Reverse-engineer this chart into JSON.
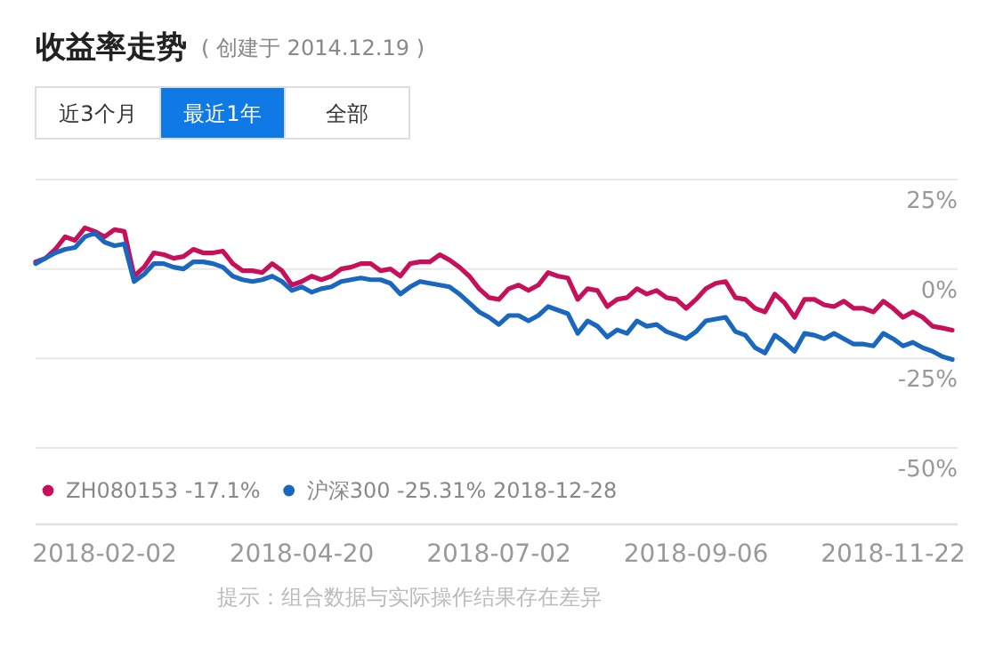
{
  "chart_data": {
    "type": "line",
    "title": "收益率走势",
    "subtitle": "( 创建于 2014.12.19 )",
    "categories": [
      null,
      null,
      null,
      null,
      null,
      null,
      null,
      "2018-02-02",
      null,
      null,
      null,
      null,
      null,
      null,
      null,
      null,
      null,
      null,
      null,
      null,
      null,
      null,
      null,
      null,
      null,
      null,
      null,
      "2018-04-20",
      null,
      null,
      null,
      null,
      null,
      null,
      null,
      null,
      null,
      null,
      null,
      null,
      null,
      null,
      null,
      null,
      null,
      null,
      null,
      "2018-07-02",
      null,
      null,
      null,
      null,
      null,
      null,
      null,
      null,
      null,
      null,
      null,
      null,
      null,
      null,
      null,
      null,
      null,
      null,
      null,
      "2018-09-06",
      null,
      null,
      null,
      null,
      null,
      null,
      null,
      null,
      null,
      null,
      null,
      null,
      null,
      null,
      null,
      null,
      null,
      null,
      null,
      "2018-11-22",
      null,
      null,
      null,
      null,
      null,
      null
    ],
    "series": [
      {
        "name": "ZH080153 -17.1%",
        "color": "#c8105a",
        "values": [
          2,
          3,
          5.5,
          9,
          8,
          11.5,
          10.5,
          9,
          11,
          10.5,
          -2,
          0.5,
          4.5,
          4,
          3,
          3.5,
          5.5,
          4.5,
          4.5,
          5,
          1.5,
          -0.5,
          -0.5,
          -1,
          1.5,
          -0.5,
          -4.5,
          -3.5,
          -2,
          -3,
          -2,
          0,
          0.5,
          1.5,
          1.5,
          -0.5,
          0,
          -2,
          1.5,
          2,
          2,
          4,
          2.5,
          0.5,
          -2,
          -5.5,
          -8,
          -8.5,
          -5.5,
          -4.5,
          -6,
          -4.5,
          -1,
          -2,
          -2.5,
          -8.5,
          -5.5,
          -6,
          -10.5,
          -8.5,
          -8,
          -5.5,
          -7,
          -6,
          -8,
          -8.5,
          -11,
          -8.5,
          -5.5,
          -4,
          -3.5,
          -8,
          -8.5,
          -11,
          -12,
          -7,
          -9.5,
          -13.5,
          -8.5,
          -8.5,
          -10,
          -10.5,
          -9,
          -11,
          -11,
          -12,
          -9,
          -11,
          -13.5,
          -12,
          -13.5,
          -16,
          -16.5,
          -17.1
        ]
      },
      {
        "name": "沪深300 -25.31% 2018-12-28",
        "color": "#1a67c0",
        "values": [
          1.5,
          3,
          4.5,
          5.5,
          6,
          9,
          10,
          7.5,
          6.5,
          7,
          -3.5,
          -1.5,
          1.5,
          1.5,
          0.5,
          0,
          2,
          2,
          1.5,
          0.5,
          -2,
          -3,
          -3.5,
          -3,
          -2,
          -3.5,
          -6,
          -5,
          -6.5,
          -5.5,
          -5,
          -3.5,
          -3,
          -2.5,
          -3,
          -3,
          -4,
          -7,
          -5,
          -3.5,
          -4,
          -4.5,
          -5,
          -7,
          -9.5,
          -12,
          -13.5,
          -15.5,
          -13,
          -13,
          -14.5,
          -13,
          -10.5,
          -11.5,
          -12.5,
          -18,
          -14.5,
          -16,
          -19,
          -17,
          -18,
          -14.5,
          -16,
          -15.5,
          -17.5,
          -18.5,
          -19.5,
          -17.5,
          -14.5,
          -14,
          -13.5,
          -17.5,
          -18.5,
          -22,
          -23.5,
          -18.5,
          -20.5,
          -23,
          -18,
          -18.5,
          -19.5,
          -18,
          -19.5,
          -21,
          -21,
          -21.5,
          -18,
          -19.5,
          -21.5,
          -20.5,
          -22,
          -23,
          -24.5,
          -25.3
        ]
      }
    ],
    "ylim": [
      -50,
      25
    ],
    "yticks": [
      {
        "value": 25,
        "label": "25%"
      },
      {
        "value": 0,
        "label": "0%"
      },
      {
        "value": -25,
        "label": "-25%"
      },
      {
        "value": -50,
        "label": "-50%"
      }
    ],
    "grid": "y",
    "legend": "bottom left",
    "marker": "none",
    "line_style": "solid",
    "annotations": [
      "近3个月",
      "最近1年",
      "全部",
      "提示：组合数据与实际操作结果存在差异"
    ]
  }
}
